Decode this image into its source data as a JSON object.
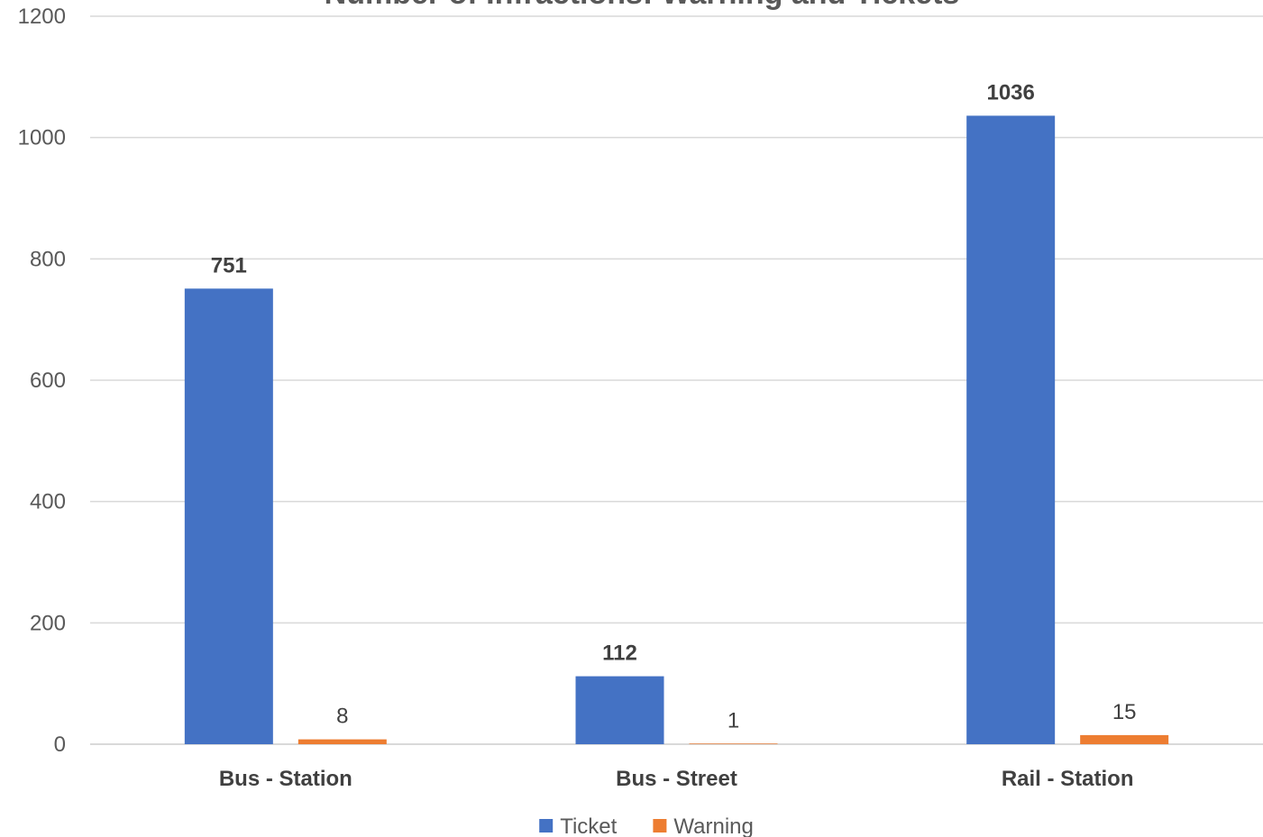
{
  "chart_data": {
    "type": "bar",
    "title": "Number of Infractions: Warning and Tickets",
    "xlabel": "",
    "ylabel": "",
    "ylim": [
      0,
      1200
    ],
    "yticks": [
      0,
      200,
      400,
      600,
      800,
      1000,
      1200
    ],
    "categories": [
      "Bus - Station",
      "Bus - Street",
      "Rail - Station"
    ],
    "series": [
      {
        "name": "Ticket",
        "color": "#4472c4",
        "values": [
          751,
          112,
          1036
        ],
        "label_style": "bold"
      },
      {
        "name": "Warning",
        "color": "#ed7d31",
        "values": [
          8,
          1,
          15
        ],
        "label_style": "normal"
      }
    ],
    "grid": true,
    "legend_position": "bottom"
  }
}
